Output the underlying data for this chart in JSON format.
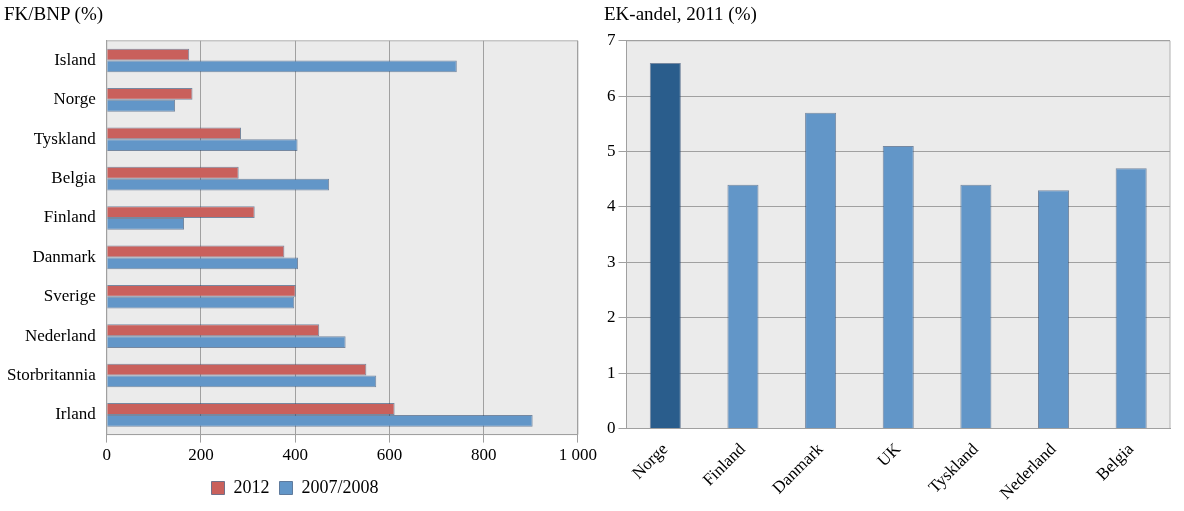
{
  "chart_data": [
    {
      "type": "bar",
      "orientation": "horizontal",
      "title": "FK/BNP (%)",
      "categories": [
        "Island",
        "Norge",
        "Tyskland",
        "Belgia",
        "Finland",
        "Danmark",
        "Sverige",
        "Nederland",
        "Storbritannia",
        "Irland"
      ],
      "series": [
        {
          "name": "2012",
          "color": "#c9605c",
          "values": [
            175,
            182,
            285,
            280,
            314,
            377,
            401,
            451,
            551,
            611
          ]
        },
        {
          "name": "2007/2008",
          "color": "#6296c8",
          "values": [
            743,
            145,
            405,
            472,
            164,
            406,
            398,
            507,
            572,
            904
          ]
        }
      ],
      "xlim": [
        0,
        1000
      ],
      "xticks": [
        0,
        200,
        400,
        600,
        800,
        {
          "value": 1000,
          "label": "1 000"
        }
      ],
      "grid": "x",
      "legend": "bottom"
    },
    {
      "type": "bar",
      "title": "EK-andel, 2011 (%)",
      "categories": [
        "Norge",
        "Finland",
        "Danmark",
        "UK",
        "Tyskland",
        "Nederland",
        "Belgia"
      ],
      "values": [
        6.6,
        4.4,
        5.7,
        5.1,
        4.4,
        4.3,
        4.7
      ],
      "colors": [
        "#2a5d8c",
        "#6296c8",
        "#6296c8",
        "#6296c8",
        "#6296c8",
        "#6296c8",
        "#6296c8"
      ],
      "ylim": [
        0,
        7
      ],
      "yticks": [
        0,
        1,
        2,
        3,
        4,
        5,
        6,
        7
      ],
      "grid": "y"
    }
  ]
}
